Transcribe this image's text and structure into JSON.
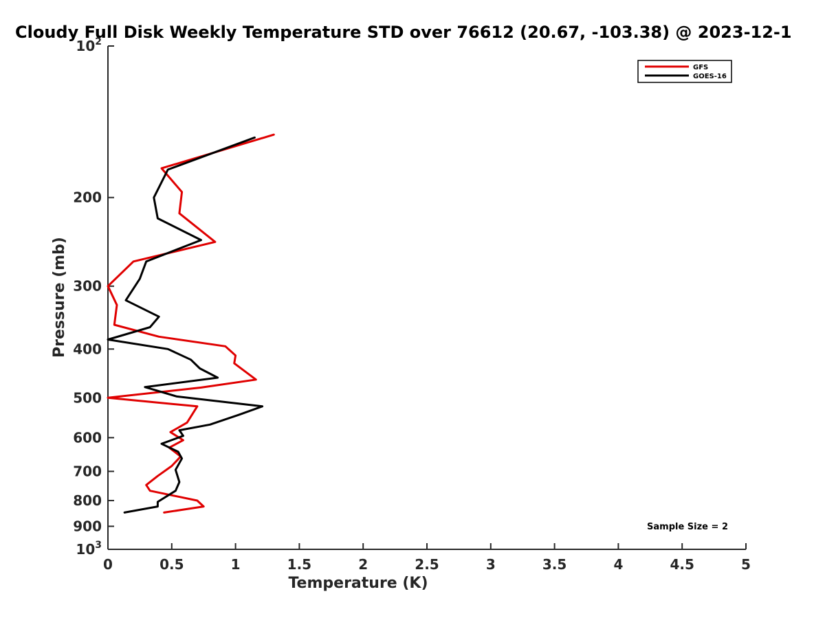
{
  "chart_data": {
    "type": "line",
    "title": "Cloudy Full Disk Weekly Temperature STD over 76612 (20.67, -103.38) @ 2023-12-1",
    "xlabel": "Temperature (K)",
    "ylabel": "Pressure (mb)",
    "xlim": [
      0,
      5
    ],
    "ylim": [
      1000,
      100
    ],
    "yscale": "log",
    "xticks": [
      0,
      0.5,
      1,
      1.5,
      2,
      2.5,
      3,
      3.5,
      4,
      4.5,
      5
    ],
    "xtick_labels": [
      "0",
      "0.5",
      "1",
      "1.5",
      "2",
      "2.5",
      "3",
      "3.5",
      "4",
      "4.5",
      "5"
    ],
    "yticks": [
      200,
      300,
      400,
      500,
      600,
      700,
      800,
      900
    ],
    "ytick_labels": [
      "200",
      "300",
      "400",
      "500",
      "600",
      "700",
      "800",
      "900"
    ],
    "ytick_extremes": [
      {
        "value": 100,
        "base": "10",
        "exp": "2"
      },
      {
        "value": 1000,
        "base": "10",
        "exp": "3"
      }
    ],
    "legend_position": "top-right",
    "grid": false,
    "annotation": "Sample Size = 2",
    "series": [
      {
        "name": "GFS",
        "color": "#e00000",
        "points": [
          [
            1.3,
            150
          ],
          [
            0.42,
            175
          ],
          [
            0.58,
            195
          ],
          [
            0.56,
            215
          ],
          [
            0.84,
            245
          ],
          [
            0.2,
            268
          ],
          [
            0.0,
            300
          ],
          [
            0.07,
            327
          ],
          [
            0.05,
            358
          ],
          [
            0.4,
            378
          ],
          [
            0.92,
            395
          ],
          [
            1.0,
            412
          ],
          [
            0.99,
            427
          ],
          [
            1.16,
            460
          ],
          [
            0.73,
            477
          ],
          [
            0.0,
            500
          ],
          [
            0.7,
            520
          ],
          [
            0.62,
            560
          ],
          [
            0.49,
            585
          ],
          [
            0.59,
            607
          ],
          [
            0.48,
            628
          ],
          [
            0.57,
            654
          ],
          [
            0.5,
            683
          ],
          [
            0.39,
            715
          ],
          [
            0.3,
            745
          ],
          [
            0.33,
            765
          ],
          [
            0.7,
            800
          ],
          [
            0.75,
            822
          ],
          [
            0.44,
            845
          ]
        ]
      },
      {
        "name": "GOES-16",
        "color": "#000000",
        "points": [
          [
            1.15,
            152
          ],
          [
            0.47,
            176
          ],
          [
            0.36,
            200
          ],
          [
            0.39,
            220
          ],
          [
            0.73,
            243
          ],
          [
            0.3,
            268
          ],
          [
            0.25,
            290
          ],
          [
            0.14,
            320
          ],
          [
            0.4,
            345
          ],
          [
            0.33,
            362
          ],
          [
            0.0,
            383
          ],
          [
            0.47,
            400
          ],
          [
            0.65,
            420
          ],
          [
            0.72,
            437
          ],
          [
            0.86,
            456
          ],
          [
            0.29,
            476
          ],
          [
            0.54,
            497
          ],
          [
            1.21,
            520
          ],
          [
            1.03,
            540
          ],
          [
            0.8,
            565
          ],
          [
            0.56,
            580
          ],
          [
            0.59,
            595
          ],
          [
            0.42,
            617
          ],
          [
            0.55,
            640
          ],
          [
            0.58,
            660
          ],
          [
            0.53,
            695
          ],
          [
            0.56,
            735
          ],
          [
            0.53,
            765
          ],
          [
            0.39,
            805
          ],
          [
            0.39,
            822
          ],
          [
            0.13,
            845
          ]
        ]
      }
    ]
  }
}
